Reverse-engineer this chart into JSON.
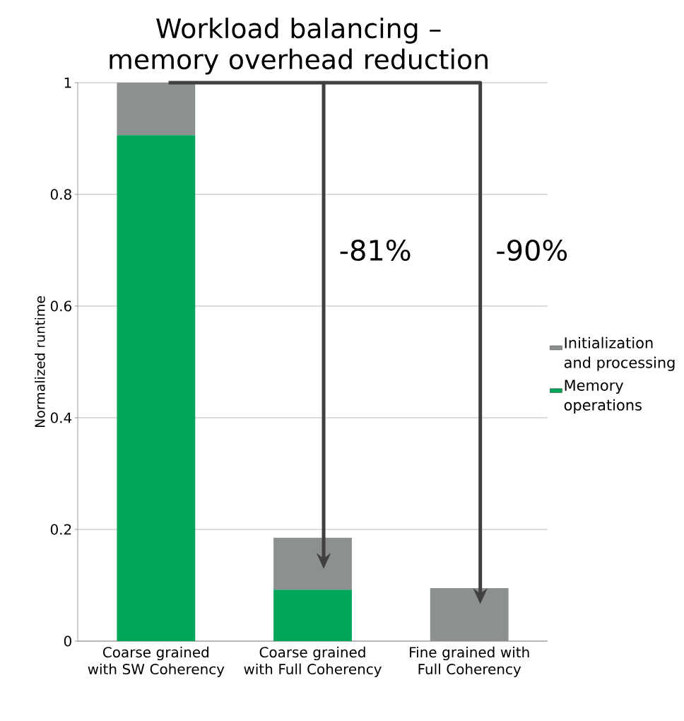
{
  "chart_data": {
    "type": "bar",
    "title": "Workload balancing – memory overhead reduction",
    "ylabel": "Normalized runtime",
    "categories": [
      "Coarse grained with SW Coherency",
      "Coarse grained with Full Coherency",
      "Fine grained with Full Coherency"
    ],
    "series": [
      {
        "name": "Memory operations",
        "color": "#00a65a",
        "values": [
          0.906,
          0.092,
          0
        ]
      },
      {
        "name": "Initialization and processing",
        "color": "#8c9091",
        "values": [
          0.094,
          0.093,
          0.095
        ]
      }
    ],
    "stacked": true,
    "ylim": [
      0,
      1
    ],
    "yticks": [
      0,
      0.2,
      0.4,
      0.6,
      0.8,
      1
    ],
    "grid": "y",
    "legend": "right",
    "annotations": [
      "-81%",
      "-90%"
    ]
  }
}
